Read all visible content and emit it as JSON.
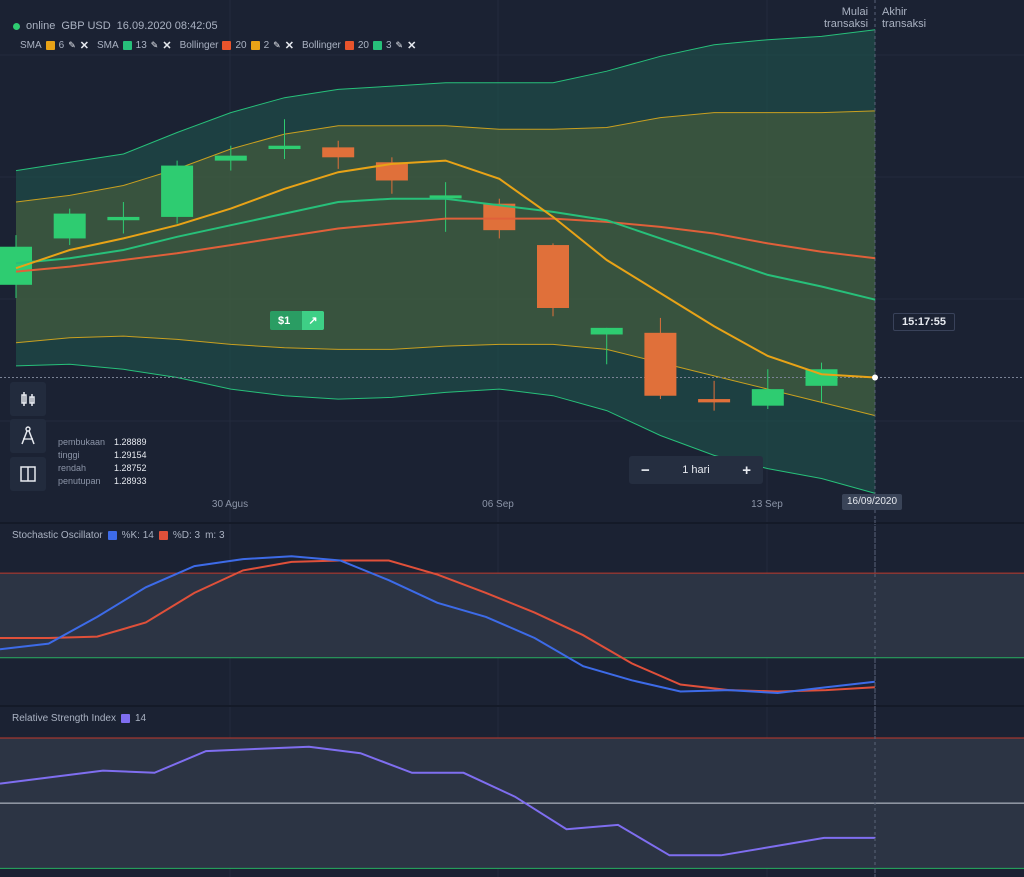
{
  "header": {
    "status": "online",
    "pair": "GBP USD",
    "datetime": "16.09.2020 08:42:05"
  },
  "indicators": [
    {
      "label": "SMA",
      "params": [
        "6"
      ],
      "colors": [
        "#e8a317"
      ]
    },
    {
      "label": "SMA",
      "params": [
        "13"
      ],
      "colors": [
        "#27c07a"
      ]
    },
    {
      "label": "Bollinger",
      "params": [
        "20",
        "2"
      ],
      "colors": [
        "#e8542c",
        "#e8a317"
      ]
    },
    {
      "label": "Bollinger",
      "params": [
        "20",
        "3"
      ],
      "colors": [
        "#e8542c",
        "#27c07a"
      ]
    }
  ],
  "markers": {
    "start": "Mulai\ntransaksi",
    "end": "Akhir\ntransaksi"
  },
  "ohlc": [
    {
      "key": "pembukaan",
      "value": "1.28889"
    },
    {
      "key": "tinggi",
      "value": "1.29154"
    },
    {
      "key": "rendah",
      "value": "1.28752"
    },
    {
      "key": "penutupan",
      "value": "1.28933"
    }
  ],
  "period": {
    "minus": "−",
    "label": "1 hari",
    "plus": "+"
  },
  "trade_badge": {
    "amount": "$1",
    "arrow": "↗"
  },
  "time_label": "15:17:55",
  "date_label": "16/09/2020",
  "stoch_title": {
    "name": "Stochastic Oscillator",
    "k": "%K: 14",
    "d": "%D: 3",
    "m": "m: 3"
  },
  "rsi_title": {
    "name": "Relative Strength Index",
    "p": "14"
  },
  "colors": {
    "up": "#2ecc71",
    "down": "#e0703a",
    "stochK": "#3d6be8",
    "stochD": "#e0503a",
    "rsi": "#7f6ef0"
  },
  "chart_data": [
    {
      "type": "candlestick",
      "x": [
        "30 Agus",
        "06 Sep",
        "13 Sep"
      ],
      "ohlc": [
        [
          1.2862,
          1.2892,
          1.2854,
          1.2885
        ],
        [
          1.289,
          1.2908,
          1.2886,
          1.2905
        ],
        [
          1.2901,
          1.2912,
          1.2893,
          1.2903
        ],
        [
          1.2903,
          1.2937,
          1.2899,
          1.2934
        ],
        [
          1.2937,
          1.2946,
          1.2931,
          1.294
        ],
        [
          1.2944,
          1.2962,
          1.2938,
          1.2946
        ],
        [
          1.2945,
          1.2949,
          1.2932,
          1.2939
        ],
        [
          1.2936,
          1.2939,
          1.2917,
          1.2925
        ],
        [
          1.2916,
          1.2924,
          1.2894,
          1.2916
        ],
        [
          1.2911,
          1.2914,
          1.289,
          1.2895
        ],
        [
          1.2886,
          1.2887,
          1.2843,
          1.2848
        ],
        [
          1.2832,
          1.2836,
          1.2814,
          1.2836
        ],
        [
          1.2833,
          1.2842,
          1.2793,
          1.2795
        ],
        [
          1.2793,
          1.2804,
          1.2786,
          1.2791
        ],
        [
          1.2789,
          1.2811,
          1.2787,
          1.2799
        ],
        [
          1.2801,
          1.2815,
          1.2791,
          1.2811
        ]
      ],
      "sma6": [
        1.2872,
        1.2883,
        1.289,
        1.2898,
        1.2908,
        1.292,
        1.293,
        1.2935,
        1.2937,
        1.2926,
        1.2903,
        1.2877,
        1.2857,
        1.2837,
        1.2819,
        1.2808,
        1.2806
      ],
      "sma13": [
        1.2875,
        1.2878,
        1.2883,
        1.2891,
        1.2898,
        1.2905,
        1.2912,
        1.2914,
        1.2914,
        1.291,
        1.2906,
        1.2901,
        1.289,
        1.2879,
        1.2868,
        1.2861,
        1.2853
      ],
      "bb_mid": [
        1.287,
        1.2873,
        1.2877,
        1.2881,
        1.2886,
        1.2891,
        1.2896,
        1.2899,
        1.2902,
        1.2902,
        1.2902,
        1.29,
        1.2897,
        1.2893,
        1.2887,
        1.2882,
        1.2878
      ],
      "bb2_upper": [
        1.2912,
        1.2916,
        1.2922,
        1.2932,
        1.2944,
        1.2953,
        1.2958,
        1.2958,
        1.2958,
        1.2956,
        1.2956,
        1.2957,
        1.2963,
        1.2966,
        1.2966,
        1.2966,
        1.2967
      ],
      "bb2_lower": [
        1.2827,
        1.283,
        1.2831,
        1.2829,
        1.2826,
        1.2824,
        1.2823,
        1.2823,
        1.2825,
        1.2826,
        1.2826,
        1.2823,
        1.2815,
        1.2807,
        1.2799,
        1.2791,
        1.2783
      ],
      "bb3_upper": [
        1.2931,
        1.2936,
        1.2941,
        1.2954,
        1.2966,
        1.2975,
        1.298,
        1.2982,
        1.2984,
        1.2984,
        1.2984,
        1.2991,
        1.3,
        1.3007,
        1.301,
        1.3012,
        1.3016
      ],
      "bb3_lower": [
        1.2813,
        1.2814,
        1.2811,
        1.2806,
        1.2799,
        1.2795,
        1.2793,
        1.2794,
        1.2797,
        1.2799,
        1.2795,
        1.2786,
        1.2771,
        1.2759,
        1.2751,
        1.2745,
        1.2736
      ],
      "current_price": 1.2806,
      "ylim": [
        1.2726,
        1.3034
      ]
    },
    {
      "type": "line",
      "title": "Stochastic Oscillator",
      "series": [
        {
          "name": "%K: 14",
          "values": [
            26,
            30,
            49,
            70,
            85,
            90,
            92,
            89,
            75,
            59,
            49,
            34,
            14,
            4,
            -4,
            -3,
            -5,
            -1,
            3
          ]
        },
        {
          "name": "%D: 3",
          "values": [
            34,
            34,
            35,
            45,
            66,
            82,
            88,
            89,
            89,
            79,
            66,
            52,
            36,
            16,
            1,
            -3,
            -4,
            -3,
            -1
          ]
        }
      ],
      "ylim": [
        -10,
        100
      ],
      "levels": [
        80,
        20
      ]
    },
    {
      "type": "line",
      "title": "Relative Strength Index",
      "series": [
        {
          "name": "14",
          "values": [
            59,
            62,
            65,
            64,
            74,
            75,
            76,
            73,
            64,
            64,
            53,
            38,
            40,
            26,
            26,
            30,
            34,
            34
          ]
        },
        {
          "name": "",
          "values": []
        }
      ],
      "ylim": [
        16,
        86
      ],
      "levels": [
        80,
        50,
        20
      ]
    }
  ]
}
